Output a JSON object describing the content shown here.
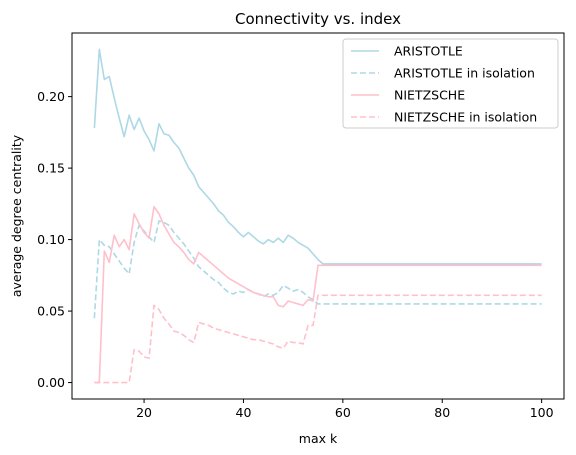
{
  "chart_data": {
    "type": "line",
    "title": "Connectivity vs. index",
    "xlabel": "max k",
    "ylabel": "average degree centrality",
    "xlim": [
      5.5,
      104.5
    ],
    "ylim": [
      -0.0115,
      0.2445
    ],
    "xticks": [
      20,
      40,
      60,
      80,
      100
    ],
    "xtick_labels": [
      "20",
      "40",
      "60",
      "80",
      "100"
    ],
    "yticks": [
      0.0,
      0.05,
      0.1,
      0.15,
      0.2
    ],
    "ytick_labels": [
      "0.00",
      "0.05",
      "0.10",
      "0.15",
      "0.20"
    ],
    "grid": false,
    "legend_position": "top-right",
    "series": [
      {
        "name": "ARISTOTLE",
        "color": "#add8e6",
        "dash": "solid",
        "points": [
          [
            10,
            0.178
          ],
          [
            11,
            0.233
          ],
          [
            12,
            0.212
          ],
          [
            13,
            0.214
          ],
          [
            14,
            0.199
          ],
          [
            15,
            0.185
          ],
          [
            16,
            0.172
          ],
          [
            17,
            0.187
          ],
          [
            18,
            0.177
          ],
          [
            19,
            0.185
          ],
          [
            20,
            0.176
          ],
          [
            21,
            0.17
          ],
          [
            22,
            0.162
          ],
          [
            23,
            0.181
          ],
          [
            24,
            0.174
          ],
          [
            25,
            0.173
          ],
          [
            26,
            0.168
          ],
          [
            27,
            0.164
          ],
          [
            28,
            0.157
          ],
          [
            29,
            0.15
          ],
          [
            30,
            0.145
          ],
          [
            31,
            0.137
          ],
          [
            32,
            0.133
          ],
          [
            33,
            0.129
          ],
          [
            34,
            0.125
          ],
          [
            35,
            0.12
          ],
          [
            36,
            0.117
          ],
          [
            37,
            0.112
          ],
          [
            38,
            0.109
          ],
          [
            39,
            0.105
          ],
          [
            40,
            0.102
          ],
          [
            41,
            0.105
          ],
          [
            42,
            0.102
          ],
          [
            43,
            0.099
          ],
          [
            44,
            0.097
          ],
          [
            45,
            0.1
          ],
          [
            46,
            0.098
          ],
          [
            47,
            0.101
          ],
          [
            48,
            0.098
          ],
          [
            49,
            0.103
          ],
          [
            50,
            0.101
          ],
          [
            51,
            0.098
          ],
          [
            52,
            0.096
          ],
          [
            53,
            0.094
          ],
          [
            54,
            0.09
          ],
          [
            55,
            0.086
          ],
          [
            56,
            0.083
          ],
          [
            60,
            0.083
          ],
          [
            70,
            0.083
          ],
          [
            80,
            0.083
          ],
          [
            90,
            0.083
          ],
          [
            100,
            0.083
          ]
        ]
      },
      {
        "name": "ARISTOTLE in isolation",
        "color": "#add8e6",
        "dash": "dashed",
        "points": [
          [
            10,
            0.045
          ],
          [
            11,
            0.1
          ],
          [
            12,
            0.096
          ],
          [
            13,
            0.095
          ],
          [
            14,
            0.09
          ],
          [
            15,
            0.085
          ],
          [
            16,
            0.08
          ],
          [
            17,
            0.076
          ],
          [
            18,
            0.098
          ],
          [
            19,
            0.11
          ],
          [
            20,
            0.106
          ],
          [
            21,
            0.102
          ],
          [
            22,
            0.098
          ],
          [
            23,
            0.113
          ],
          [
            24,
            0.112
          ],
          [
            25,
            0.11
          ],
          [
            26,
            0.105
          ],
          [
            27,
            0.101
          ],
          [
            28,
            0.097
          ],
          [
            29,
            0.092
          ],
          [
            30,
            0.087
          ],
          [
            31,
            0.081
          ],
          [
            32,
            0.078
          ],
          [
            33,
            0.075
          ],
          [
            34,
            0.072
          ],
          [
            35,
            0.07
          ],
          [
            36,
            0.066
          ],
          [
            37,
            0.063
          ],
          [
            38,
            0.062
          ],
          [
            39,
            0.064
          ],
          [
            40,
            0.063
          ],
          [
            41,
            0.065
          ],
          [
            42,
            0.063
          ],
          [
            43,
            0.062
          ],
          [
            44,
            0.06
          ],
          [
            45,
            0.062
          ],
          [
            46,
            0.061
          ],
          [
            47,
            0.063
          ],
          [
            48,
            0.068
          ],
          [
            49,
            0.066
          ],
          [
            50,
            0.064
          ],
          [
            51,
            0.065
          ],
          [
            52,
            0.063
          ],
          [
            53,
            0.06
          ],
          [
            54,
            0.058
          ],
          [
            55,
            0.055
          ],
          [
            56,
            0.055
          ],
          [
            60,
            0.055
          ],
          [
            70,
            0.055
          ],
          [
            80,
            0.055
          ],
          [
            90,
            0.055
          ],
          [
            100,
            0.055
          ]
        ]
      },
      {
        "name": "NIETZSCHE",
        "color": "#ffc0cb",
        "dash": "solid",
        "points": [
          [
            10,
            0.0
          ],
          [
            11,
            0.0
          ],
          [
            12,
            0.092
          ],
          [
            13,
            0.084
          ],
          [
            14,
            0.103
          ],
          [
            15,
            0.095
          ],
          [
            16,
            0.1
          ],
          [
            17,
            0.093
          ],
          [
            18,
            0.118
          ],
          [
            19,
            0.111
          ],
          [
            20,
            0.105
          ],
          [
            21,
            0.101
          ],
          [
            22,
            0.123
          ],
          [
            23,
            0.118
          ],
          [
            24,
            0.11
          ],
          [
            25,
            0.104
          ],
          [
            26,
            0.098
          ],
          [
            27,
            0.095
          ],
          [
            28,
            0.091
          ],
          [
            29,
            0.086
          ],
          [
            30,
            0.083
          ],
          [
            31,
            0.091
          ],
          [
            32,
            0.088
          ],
          [
            33,
            0.085
          ],
          [
            34,
            0.082
          ],
          [
            35,
            0.079
          ],
          [
            36,
            0.076
          ],
          [
            37,
            0.073
          ],
          [
            38,
            0.071
          ],
          [
            39,
            0.069
          ],
          [
            40,
            0.067
          ],
          [
            41,
            0.065
          ],
          [
            42,
            0.063
          ],
          [
            43,
            0.062
          ],
          [
            44,
            0.061
          ],
          [
            45,
            0.06
          ],
          [
            46,
            0.06
          ],
          [
            47,
            0.054
          ],
          [
            48,
            0.053
          ],
          [
            49,
            0.057
          ],
          [
            50,
            0.056
          ],
          [
            51,
            0.055
          ],
          [
            52,
            0.054
          ],
          [
            53,
            0.058
          ],
          [
            54,
            0.057
          ],
          [
            55,
            0.082
          ],
          [
            60,
            0.082
          ],
          [
            70,
            0.082
          ],
          [
            80,
            0.082
          ],
          [
            90,
            0.082
          ],
          [
            100,
            0.082
          ]
        ]
      },
      {
        "name": "NIETZSCHE in isolation",
        "color": "#ffc0cb",
        "dash": "dashed",
        "points": [
          [
            10,
            0.0
          ],
          [
            11,
            0.0
          ],
          [
            12,
            0.0
          ],
          [
            13,
            0.0
          ],
          [
            14,
            0.0
          ],
          [
            15,
            0.0
          ],
          [
            16,
            0.0
          ],
          [
            17,
            0.0
          ],
          [
            18,
            0.023
          ],
          [
            19,
            0.022
          ],
          [
            20,
            0.018
          ],
          [
            21,
            0.017
          ],
          [
            22,
            0.054
          ],
          [
            23,
            0.051
          ],
          [
            24,
            0.045
          ],
          [
            25,
            0.041
          ],
          [
            26,
            0.036
          ],
          [
            27,
            0.035
          ],
          [
            28,
            0.033
          ],
          [
            29,
            0.03
          ],
          [
            30,
            0.028
          ],
          [
            31,
            0.042
          ],
          [
            32,
            0.041
          ],
          [
            33,
            0.04
          ],
          [
            34,
            0.038
          ],
          [
            35,
            0.037
          ],
          [
            36,
            0.036
          ],
          [
            37,
            0.035
          ],
          [
            38,
            0.034
          ],
          [
            39,
            0.033
          ],
          [
            40,
            0.032
          ],
          [
            41,
            0.031
          ],
          [
            42,
            0.03
          ],
          [
            43,
            0.03
          ],
          [
            44,
            0.029
          ],
          [
            45,
            0.028
          ],
          [
            46,
            0.027
          ],
          [
            47,
            0.025
          ],
          [
            48,
            0.024
          ],
          [
            49,
            0.029
          ],
          [
            50,
            0.028
          ],
          [
            51,
            0.028
          ],
          [
            52,
            0.027
          ],
          [
            53,
            0.04
          ],
          [
            54,
            0.04
          ],
          [
            55,
            0.061
          ],
          [
            60,
            0.061
          ],
          [
            70,
            0.061
          ],
          [
            80,
            0.061
          ],
          [
            90,
            0.061
          ],
          [
            100,
            0.061
          ]
        ]
      }
    ]
  }
}
